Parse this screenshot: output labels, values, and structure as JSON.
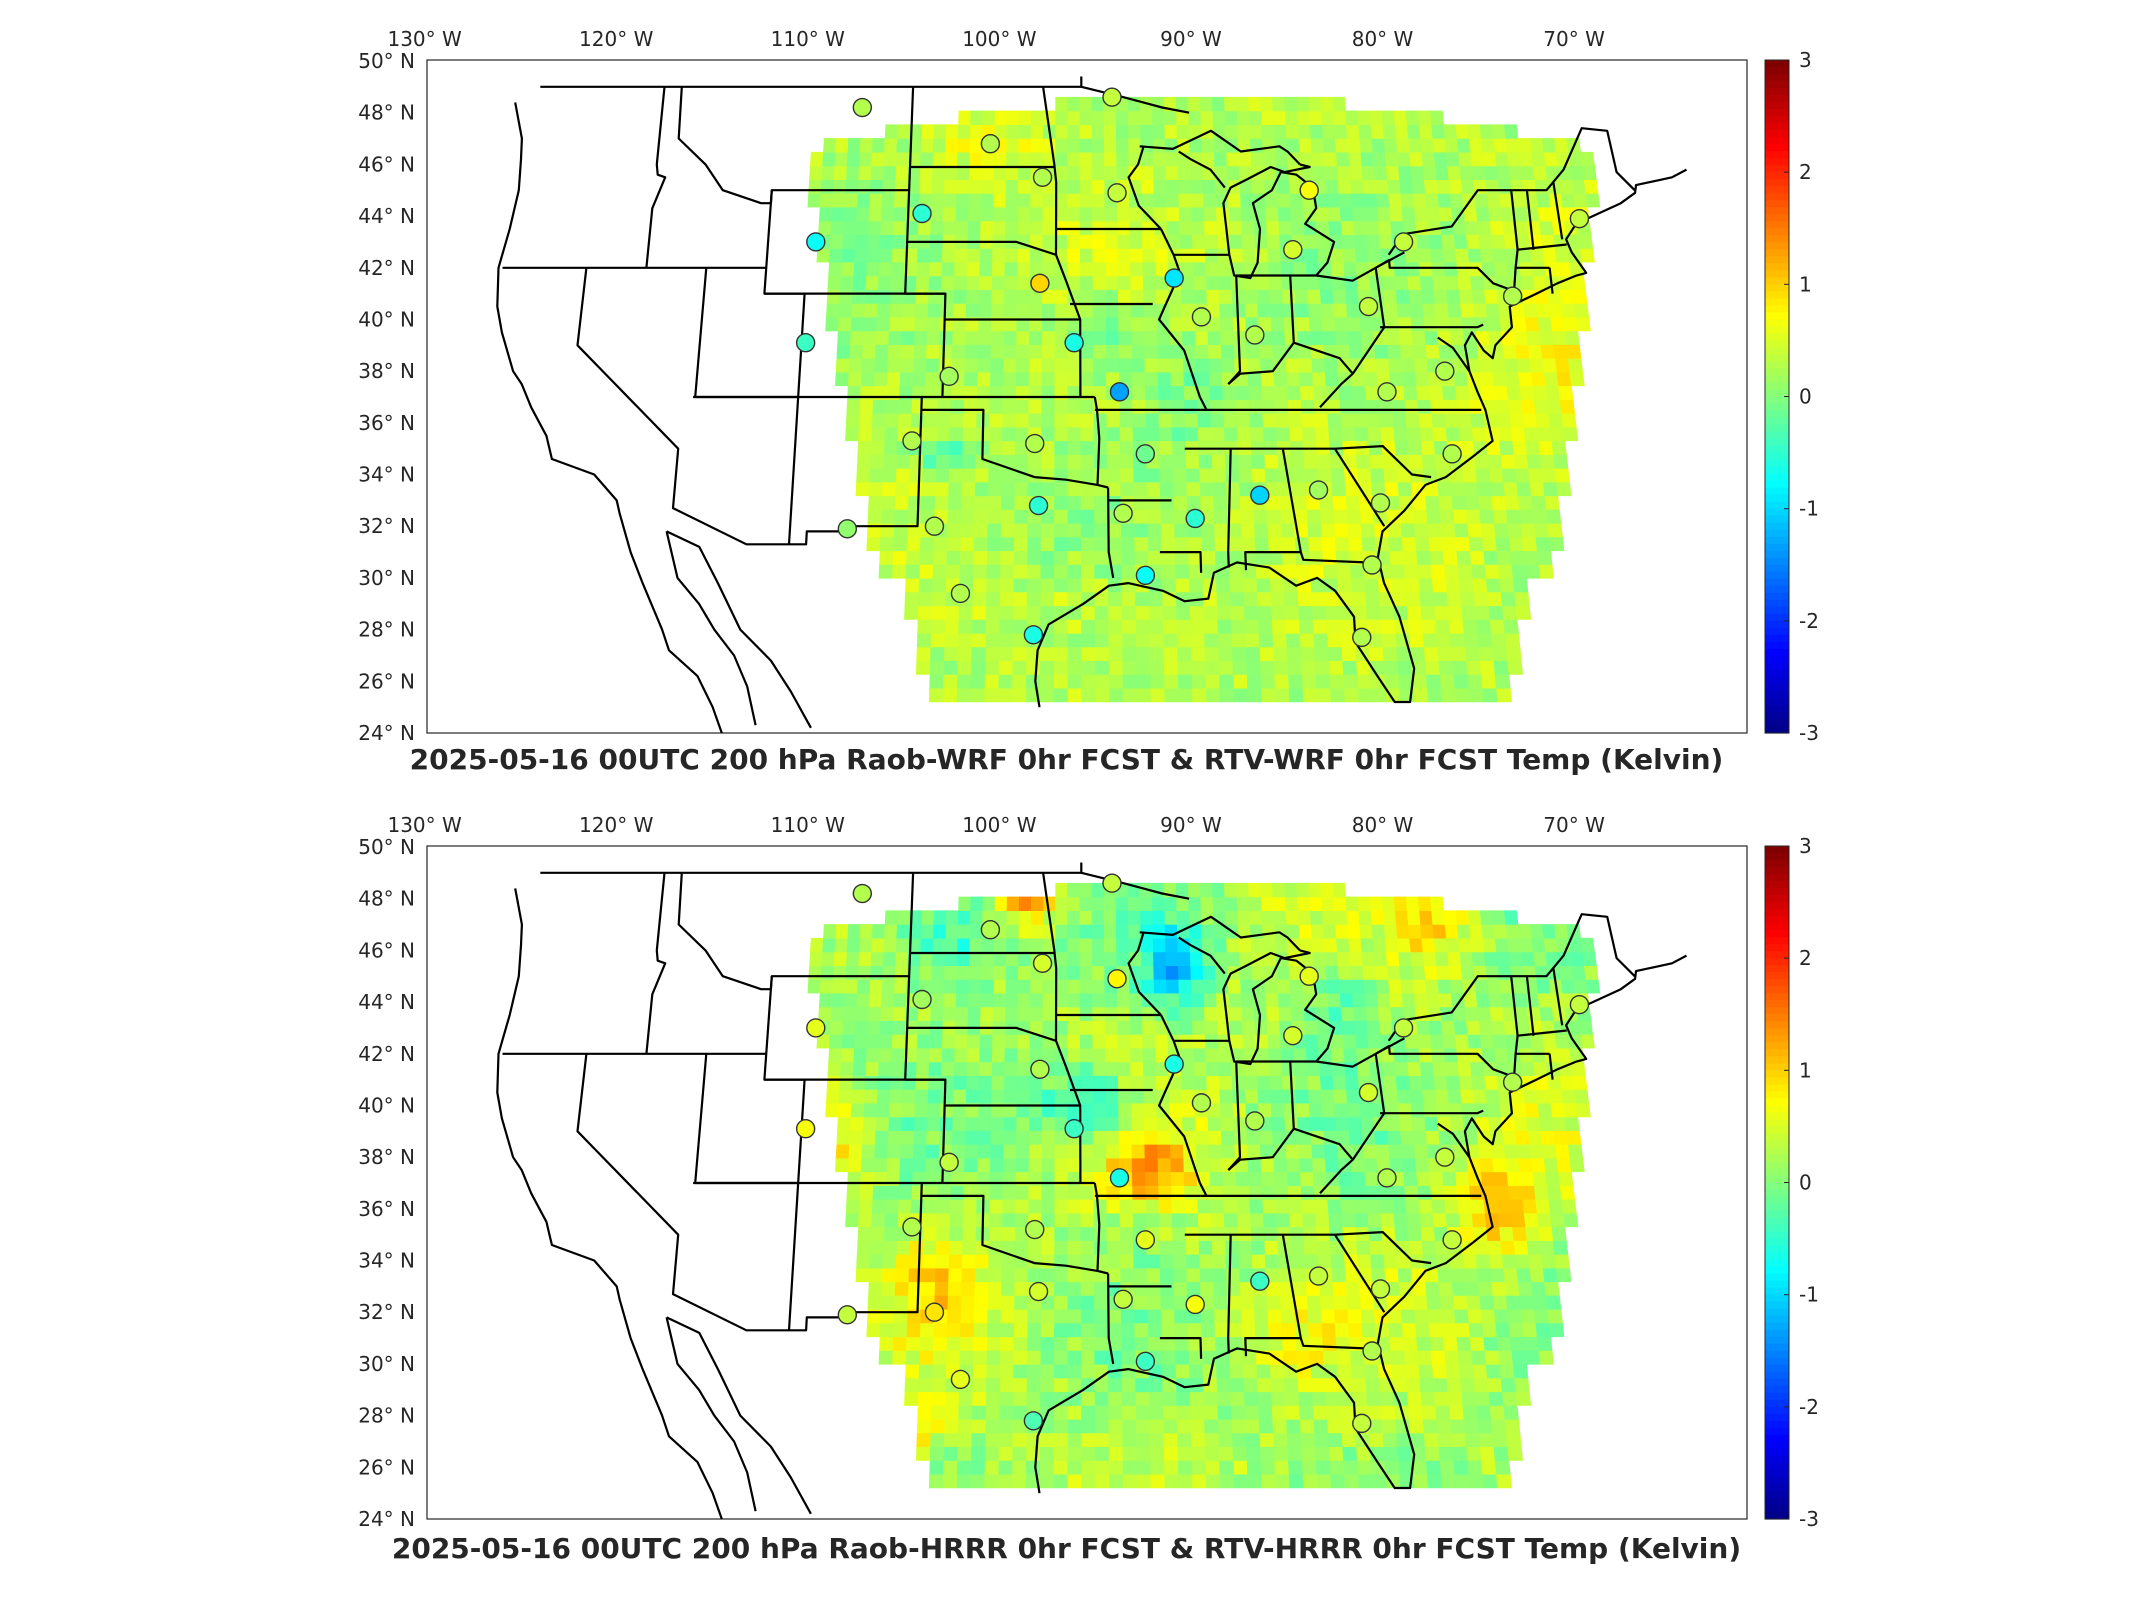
{
  "panels": [
    {
      "title": "2025-05-16 00UTC 200 hPa Raob-WRF 0hr FCST & RTV-WRF 0hr FCST Temp (Kelvin)",
      "field": "wrf",
      "stations": [
        [
          -106.6,
          48.2,
          0.3
        ],
        [
          -99.9,
          46.8,
          0.3
        ],
        [
          -93.6,
          48.6,
          0.4
        ],
        [
          -97.2,
          45.5,
          0.3
        ],
        [
          -93.4,
          44.9,
          0.4
        ],
        [
          -103.3,
          44.1,
          -0.5
        ],
        [
          -108.6,
          43.0,
          -0.7
        ],
        [
          -97.3,
          41.4,
          1.0
        ],
        [
          -90.6,
          41.6,
          -0.9
        ],
        [
          -89.3,
          40.1,
          0.3
        ],
        [
          -83.6,
          45.0,
          0.7
        ],
        [
          -84.6,
          42.7,
          0.5
        ],
        [
          -79.0,
          43.0,
          0.4
        ],
        [
          -81.0,
          40.5,
          0.4
        ],
        [
          -86.7,
          39.4,
          0.3
        ],
        [
          -95.6,
          39.1,
          -0.6
        ],
        [
          -101.7,
          37.8,
          0.2
        ],
        [
          -93.4,
          37.2,
          -1.3
        ],
        [
          -108.8,
          39.1,
          -0.4
        ],
        [
          -80.4,
          37.2,
          0.3
        ],
        [
          -77.5,
          38.0,
          0.3
        ],
        [
          -73.8,
          40.9,
          0.3
        ],
        [
          -70.0,
          43.9,
          0.4
        ],
        [
          -97.5,
          35.2,
          0.3
        ],
        [
          -103.4,
          35.3,
          0.3
        ],
        [
          -92.2,
          34.8,
          -0.1
        ],
        [
          -97.3,
          32.8,
          -0.5
        ],
        [
          -102.2,
          32.0,
          0.3
        ],
        [
          -106.3,
          31.9,
          0.1
        ],
        [
          -89.9,
          32.3,
          -0.5
        ],
        [
          -86.8,
          33.2,
          -1.0
        ],
        [
          -84.0,
          33.4,
          0.2
        ],
        [
          -81.1,
          32.9,
          0.3
        ],
        [
          -77.5,
          34.8,
          0.3
        ],
        [
          -93.3,
          32.5,
          0.3
        ],
        [
          -92.3,
          30.1,
          -0.7
        ],
        [
          -81.7,
          30.5,
          0.3
        ],
        [
          -100.9,
          29.4,
          0.3
        ],
        [
          -97.5,
          27.8,
          -0.6
        ],
        [
          -82.4,
          27.7,
          0.3
        ]
      ]
    },
    {
      "title": "2025-05-16 00UTC 200 hPa Raob-HRRR 0hr FCST & RTV-HRRR 0hr FCST Temp (Kelvin)",
      "field": "hrrr",
      "stations": [
        [
          -106.6,
          48.2,
          0.3
        ],
        [
          -99.9,
          46.8,
          0.3
        ],
        [
          -93.6,
          48.6,
          0.4
        ],
        [
          -97.2,
          45.5,
          0.5
        ],
        [
          -93.4,
          44.9,
          0.8
        ],
        [
          -103.3,
          44.1,
          0.2
        ],
        [
          -108.6,
          43.0,
          0.6
        ],
        [
          -97.3,
          41.4,
          0.3
        ],
        [
          -90.6,
          41.6,
          -0.6
        ],
        [
          -89.3,
          40.1,
          0.3
        ],
        [
          -83.6,
          45.0,
          0.6
        ],
        [
          -84.6,
          42.7,
          0.5
        ],
        [
          -79.0,
          43.0,
          0.4
        ],
        [
          -81.0,
          40.5,
          0.5
        ],
        [
          -86.7,
          39.4,
          0.3
        ],
        [
          -95.6,
          39.1,
          -0.4
        ],
        [
          -101.7,
          37.8,
          0.4
        ],
        [
          -93.4,
          37.2,
          -0.6
        ],
        [
          -108.8,
          39.1,
          0.7
        ],
        [
          -80.4,
          37.2,
          0.3
        ],
        [
          -77.5,
          38.0,
          0.4
        ],
        [
          -73.8,
          40.9,
          0.3
        ],
        [
          -70.0,
          43.9,
          0.4
        ],
        [
          -97.5,
          35.2,
          0.3
        ],
        [
          -103.4,
          35.3,
          0.3
        ],
        [
          -92.2,
          34.8,
          0.6
        ],
        [
          -97.3,
          32.8,
          0.5
        ],
        [
          -102.2,
          32.0,
          0.9
        ],
        [
          -106.3,
          31.9,
          0.4
        ],
        [
          -89.9,
          32.3,
          0.7
        ],
        [
          -86.8,
          33.2,
          -0.4
        ],
        [
          -84.0,
          33.4,
          0.4
        ],
        [
          -81.1,
          32.9,
          0.4
        ],
        [
          -77.5,
          34.8,
          0.4
        ],
        [
          -93.3,
          32.5,
          0.4
        ],
        [
          -92.3,
          30.1,
          -0.4
        ],
        [
          -81.7,
          30.5,
          0.3
        ],
        [
          -100.9,
          29.4,
          0.6
        ],
        [
          -97.5,
          27.8,
          -0.3
        ],
        [
          -82.4,
          27.7,
          0.4
        ]
      ]
    }
  ],
  "lon_labels": [
    "130° W",
    "120° W",
    "110° W",
    "100° W",
    "90° W",
    "80° W",
    "70° W"
  ],
  "lat_labels": [
    "24° N",
    "26° N",
    "28° N",
    "30° N",
    "32° N",
    "34° N",
    "36° N",
    "38° N",
    "40° N",
    "42° N",
    "44° N",
    "46° N",
    "48° N",
    "50° N"
  ],
  "colorbar_ticks": [
    "3",
    "2",
    "1",
    "0",
    "-1",
    "-2",
    "-3"
  ],
  "colormap": "jet"
}
